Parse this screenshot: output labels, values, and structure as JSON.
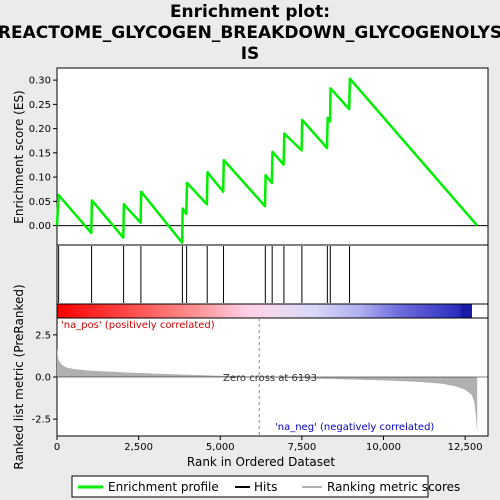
{
  "title_lines": [
    "Enrichment plot:",
    "REACTOME_GLYCOGEN_BREAKDOWN_GLYCOGENOLYS",
    "IS"
  ],
  "colors": {
    "es_line": "#00ee00",
    "hit_line": "#000000",
    "metric_fill": "#b0b0b0",
    "zero_line": "#888888",
    "pos_label": "#cc0000",
    "neg_label": "#0000cc"
  },
  "chart_data": [
    {
      "type": "line",
      "panel": "enrichment",
      "ylabel": "Enrichment score (ES)",
      "ylim": [
        -0.04,
        0.325
      ],
      "yticks": [
        0.0,
        0.05,
        0.1,
        0.15,
        0.2,
        0.25,
        0.3
      ],
      "ytick_labels": [
        "0.00",
        "0.05",
        "0.10",
        "0.15",
        "0.20",
        "0.25",
        "0.30"
      ],
      "xlim": [
        0,
        13200
      ],
      "series": [
        {
          "x": [
            0,
            50,
            1050,
            1070,
            2030,
            2050,
            2560,
            2580,
            3830,
            3850,
            3960,
            3980,
            4590,
            4610,
            5090,
            5110,
            6370,
            6390,
            6580,
            6600,
            6940,
            6960,
            7490,
            7510,
            8270,
            8290,
            8360,
            8380,
            8950,
            8970,
            12870
          ],
          "y": [
            0.0,
            0.063,
            -0.015,
            0.052,
            -0.025,
            0.044,
            0.006,
            0.07,
            -0.035,
            0.035,
            0.024,
            0.088,
            0.044,
            0.11,
            0.07,
            0.135,
            0.04,
            0.104,
            0.088,
            0.152,
            0.126,
            0.19,
            0.155,
            0.218,
            0.16,
            0.222,
            0.215,
            0.283,
            0.24,
            0.303,
            0.0
          ]
        }
      ]
    },
    {
      "type": "rug",
      "panel": "hits",
      "hits_x": [
        50,
        1060,
        2040,
        2570,
        3840,
        3970,
        4600,
        5100,
        6380,
        6590,
        6950,
        7500,
        8280,
        8370,
        8960
      ]
    },
    {
      "type": "area",
      "panel": "ranked_metric",
      "xlabel": "Rank in Ordered Dataset",
      "ylabel": "Ranked list metric (PreRanked)",
      "ylim": [
        -3.5,
        3.5
      ],
      "yticks": [
        -2.5,
        0.0,
        2.5
      ],
      "ytick_labels": [
        "-2.5",
        "0.0",
        "2.5"
      ],
      "xticks": [
        0,
        2500,
        5000,
        7500,
        10000,
        12500
      ],
      "xtick_labels": [
        "0",
        "2,500",
        "5,000",
        "7,500",
        "10,000",
        "12,500"
      ],
      "zero_cross": 6193,
      "annotations": [
        "'na_pos' (positively correlated)",
        "Zero cross at 6193",
        "'na_neg' (negatively correlated)"
      ],
      "x": [
        0,
        20,
        60,
        150,
        300,
        600,
        1000,
        2000,
        3000,
        4000,
        5000,
        6193,
        7000,
        8000,
        9000,
        10000,
        11000,
        11800,
        12200,
        12500,
        12700,
        12780,
        12830,
        12870
      ],
      "y": [
        1.7,
        1.3,
        0.95,
        0.72,
        0.55,
        0.45,
        0.38,
        0.28,
        0.2,
        0.13,
        0.07,
        0.0,
        -0.05,
        -0.1,
        -0.15,
        -0.2,
        -0.28,
        -0.4,
        -0.55,
        -0.75,
        -1.05,
        -1.5,
        -2.3,
        -3.3
      ]
    }
  ],
  "legend": {
    "items": [
      {
        "label": "Enrichment profile",
        "kind": "es"
      },
      {
        "label": "Hits",
        "kind": "hit"
      },
      {
        "label": "Ranking metric scores",
        "kind": "metric"
      }
    ]
  }
}
